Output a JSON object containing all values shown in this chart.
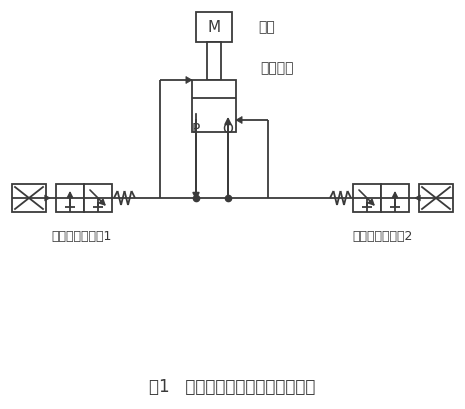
{
  "title": "图1   电液比例换向阀基本工作回路",
  "title_fontsize": 12,
  "label_M": "M",
  "label_load": "负载",
  "label_cylinder": "液压支架",
  "label_valve1": "电液比例换向阀1",
  "label_valve2": "电液比例换向阀2",
  "label_P": "P",
  "label_O": "O",
  "bg_color": "#ffffff",
  "line_color": "#3a3a3a",
  "line_width": 1.3
}
